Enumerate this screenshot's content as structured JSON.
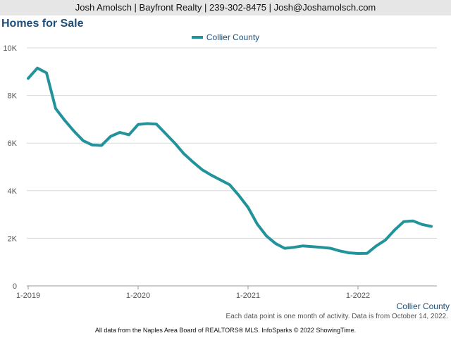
{
  "header": {
    "contact": "Josh Amolsch | Bayfront Realty | 239-302-8475 | Josh@Joshamolsch.com"
  },
  "footer": {
    "note": "Each data point is one month of activity. Data is from October 14, 2022.",
    "source": "All data from the Naples Area Board of REALTORS® MLS. InfoSparks © 2022 ShowingTime."
  },
  "colors": {
    "series": "#22939a",
    "title": "#1d4e7a"
  },
  "chart_data": {
    "type": "line",
    "title": "Homes for Sale",
    "xlabel": "",
    "ylabel": "",
    "legend_position": "top",
    "grid": true,
    "ylim": [
      0,
      10000
    ],
    "y_ticks": [
      0,
      2000,
      4000,
      6000,
      8000,
      10000
    ],
    "y_tick_labels": [
      "0",
      "2K",
      "4K",
      "6K",
      "8K",
      "10K"
    ],
    "x_ticks": [
      "2019-01",
      "2020-01",
      "2021-01",
      "2022-01"
    ],
    "x_tick_labels": [
      "1-2019",
      "1-2020",
      "1-2021",
      "1-2022"
    ],
    "x": [
      "2019-01",
      "2019-02",
      "2019-03",
      "2019-04",
      "2019-05",
      "2019-06",
      "2019-07",
      "2019-08",
      "2019-09",
      "2019-10",
      "2019-11",
      "2019-12",
      "2020-01",
      "2020-02",
      "2020-03",
      "2020-04",
      "2020-05",
      "2020-06",
      "2020-07",
      "2020-08",
      "2020-09",
      "2020-10",
      "2020-11",
      "2020-12",
      "2021-01",
      "2021-02",
      "2021-03",
      "2021-04",
      "2021-05",
      "2021-06",
      "2021-07",
      "2021-08",
      "2021-09",
      "2021-10",
      "2021-11",
      "2021-12",
      "2022-01",
      "2022-02",
      "2022-03",
      "2022-04",
      "2022-05",
      "2022-06",
      "2022-07",
      "2022-08",
      "2022-09"
    ],
    "series": [
      {
        "name": "Collier County",
        "values": [
          8720,
          9150,
          8950,
          7450,
          6950,
          6500,
          6100,
          5920,
          5900,
          6280,
          6450,
          6350,
          6780,
          6820,
          6800,
          6400,
          6000,
          5550,
          5200,
          4880,
          4650,
          4450,
          4250,
          3800,
          3300,
          2600,
          2100,
          1780,
          1580,
          1620,
          1680,
          1650,
          1620,
          1580,
          1470,
          1390,
          1360,
          1370,
          1680,
          1930,
          2350,
          2700,
          2730,
          2580,
          2500
        ]
      }
    ]
  }
}
